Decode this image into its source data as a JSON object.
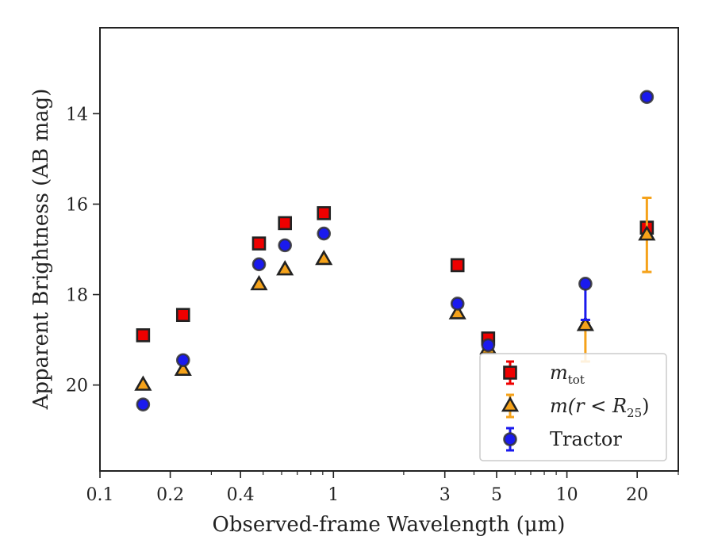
{
  "chart_data": {
    "type": "scatter",
    "xlabel": "Observed-frame Wavelength (μm)",
    "ylabel": "Apparent Brightness (AB mag)",
    "xscale": "log",
    "xlim": [
      0.1,
      30
    ],
    "ylim": [
      21.9,
      12.1
    ],
    "y_inverted": true,
    "x_ticks": [
      {
        "value": 0.1,
        "label": "0.1"
      },
      {
        "value": 0.2,
        "label": "0.2"
      },
      {
        "value": 0.4,
        "label": "0.4"
      },
      {
        "value": 1,
        "label": "1"
      },
      {
        "value": 3,
        "label": "3"
      },
      {
        "value": 5,
        "label": "5"
      },
      {
        "value": 10,
        "label": "10"
      },
      {
        "value": 20,
        "label": "20"
      }
    ],
    "y_ticks": [
      14,
      16,
      18,
      20
    ],
    "grid": false,
    "legend_position": "bottom-right",
    "series": [
      {
        "name": "m_tot",
        "legend_main": "m",
        "legend_sub": "tot",
        "marker": "square",
        "color": "#ee0000",
        "points": [
          {
            "x": 0.153,
            "y": 18.9
          },
          {
            "x": 0.227,
            "y": 18.45
          },
          {
            "x": 0.48,
            "y": 16.87
          },
          {
            "x": 0.62,
            "y": 16.42
          },
          {
            "x": 0.91,
            "y": 16.2
          },
          {
            "x": 3.4,
            "y": 17.35
          },
          {
            "x": 4.6,
            "y": 18.97
          },
          {
            "x": 22.0,
            "y": 16.52
          }
        ]
      },
      {
        "name": "m(r < R25)",
        "legend_main": "m(r < R",
        "legend_sub": "25",
        "legend_close": ")",
        "marker": "triangle",
        "color": "#f5a21a",
        "points": [
          {
            "x": 0.153,
            "y": 20.0
          },
          {
            "x": 0.227,
            "y": 19.67
          },
          {
            "x": 0.48,
            "y": 17.78
          },
          {
            "x": 0.62,
            "y": 17.45
          },
          {
            "x": 0.91,
            "y": 17.22
          },
          {
            "x": 3.4,
            "y": 18.42
          },
          {
            "x": 4.6,
            "y": 19.2
          },
          {
            "x": 12.0,
            "y": 18.68,
            "yerr_low": 0.8,
            "yerr_high": 0.05
          },
          {
            "x": 22.0,
            "y": 16.68,
            "yerr_low": 0.82,
            "yerr_high": 0.82
          }
        ]
      },
      {
        "name": "Tractor",
        "legend_main": "Tractor",
        "marker": "circle",
        "color": "#1a1aee",
        "points": [
          {
            "x": 0.153,
            "y": 20.43
          },
          {
            "x": 0.227,
            "y": 19.45
          },
          {
            "x": 0.48,
            "y": 17.33
          },
          {
            "x": 0.62,
            "y": 16.91
          },
          {
            "x": 0.91,
            "y": 16.65
          },
          {
            "x": 3.4,
            "y": 18.2
          },
          {
            "x": 4.6,
            "y": 19.12
          },
          {
            "x": 12.0,
            "y": 17.76,
            "yerr_low": 0.8,
            "yerr_high": 0.0
          },
          {
            "x": 22.0,
            "y": 13.63
          }
        ]
      }
    ]
  }
}
